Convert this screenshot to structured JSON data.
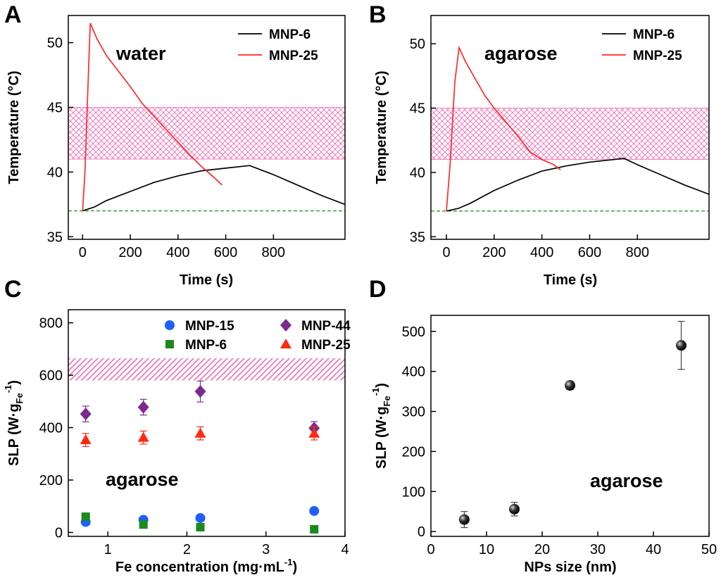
{
  "chart_data": [
    {
      "type": "line",
      "panel": "A",
      "xlabel": "Time (s)",
      "ylabel": "Temperature (°C)",
      "annotation": "water",
      "xlim": [
        -60,
        1100
      ],
      "ylim": [
        34.8,
        52.1
      ],
      "xticks": [
        0,
        200,
        400,
        600,
        800
      ],
      "yticks": [
        35,
        40,
        45,
        50
      ],
      "band": [
        41,
        45
      ],
      "band_color": "#f06bb5",
      "hline": 37,
      "hline_color": "#2e9a2e",
      "legend": "upper right",
      "series": [
        {
          "name": "MNP-6",
          "color": "#000000",
          "x": [
            0,
            50,
            100,
            200,
            300,
            400,
            500,
            600,
            700,
            800,
            900,
            1000,
            1100
          ],
          "values": [
            37,
            37.3,
            37.8,
            38.5,
            39.2,
            39.7,
            40.1,
            40.3,
            40.5,
            39.8,
            39.0,
            38.2,
            37.5
          ]
        },
        {
          "name": "MNP-25",
          "color": "#ff2a2a",
          "x": [
            0,
            10,
            25,
            32,
            60,
            100,
            150,
            200,
            250,
            300,
            350,
            400,
            450,
            500,
            550,
            584
          ],
          "values": [
            37,
            40,
            48,
            51.5,
            50.3,
            49,
            47.8,
            46.6,
            45.3,
            44.3,
            43.3,
            42.3,
            41.3,
            40.4,
            39.6,
            39.0
          ]
        }
      ]
    },
    {
      "type": "line",
      "panel": "B",
      "xlabel": "Time (s)",
      "ylabel": "Temperature (°C)",
      "annotation": "agarose",
      "xlim": [
        -65,
        1100
      ],
      "ylim": [
        34.8,
        52.2
      ],
      "xticks": [
        0,
        200,
        400,
        600,
        800
      ],
      "yticks": [
        35,
        40,
        45,
        50
      ],
      "band": [
        41,
        45
      ],
      "band_color": "#f06bb5",
      "hline": 37,
      "hline_color": "#2e9a2e",
      "legend": "upper right",
      "series": [
        {
          "name": "MNP-6",
          "color": "#000000",
          "x": [
            0,
            50,
            100,
            200,
            300,
            400,
            500,
            600,
            700,
            743,
            800,
            900,
            1000,
            1100
          ],
          "values": [
            37,
            37.2,
            37.6,
            38.6,
            39.4,
            40.1,
            40.5,
            40.8,
            41.0,
            41.1,
            40.6,
            39.8,
            39.0,
            38.3
          ]
        },
        {
          "name": "MNP-25",
          "color": "#ff2a2a",
          "x": [
            0,
            15,
            35,
            53,
            80,
            120,
            160,
            200,
            250,
            300,
            350,
            400,
            450,
            478
          ],
          "values": [
            37,
            40.5,
            47,
            49.7,
            48.6,
            47.3,
            46,
            45,
            43.9,
            42.8,
            41.6,
            41.0,
            40.6,
            40.2
          ]
        }
      ]
    },
    {
      "type": "scatter",
      "panel": "C",
      "xlabel": {
        "text": "Fe concentration (mg·mL",
        "sup": "-1",
        "close": ")"
      },
      "ylabel": {
        "text": "SLP (W·g",
        "sub": "Fe",
        "sup": "-1",
        "close": ")"
      },
      "annotation": "agarose",
      "xlim": [
        0.5,
        4
      ],
      "ylim": [
        -15,
        850
      ],
      "xticks": [
        1,
        2,
        3,
        4
      ],
      "yticks": [
        0,
        200,
        400,
        600,
        800
      ],
      "band": [
        580,
        665
      ],
      "band_color": "#f06bb5",
      "legend": "upper right",
      "x": [
        0.72,
        1.45,
        2.17,
        3.61
      ],
      "series": [
        {
          "name": "MNP-15",
          "color": "#1f5fff",
          "marker": "circle",
          "values": [
            40,
            48,
            55,
            82
          ]
        },
        {
          "name": "MNP-6",
          "color": "#1a8a1a",
          "marker": "square",
          "values": [
            60,
            30,
            20,
            12
          ]
        },
        {
          "name": "MNP-44",
          "color": "#7b2a8c",
          "marker": "diamond",
          "values": [
            452,
            478,
            538,
            398
          ],
          "errors": [
            30,
            30,
            40,
            25
          ]
        },
        {
          "name": "MNP-25",
          "color": "#ff2a10",
          "marker": "triangle",
          "values": [
            353,
            362,
            378,
            378
          ],
          "errors": [
            25,
            25,
            25,
            25
          ]
        }
      ]
    },
    {
      "type": "scatter",
      "panel": "D",
      "xlabel": "NPs size (nm)",
      "ylabel": {
        "text": "SLP (W·g",
        "sub": "Fe",
        "sup": "-1",
        "close": ")"
      },
      "annotation": "agarose",
      "xlim": [
        0,
        50
      ],
      "ylim": [
        -12,
        540
      ],
      "xticks": [
        0,
        10,
        20,
        30,
        40,
        50
      ],
      "yticks": [
        0,
        100,
        200,
        300,
        400,
        500
      ],
      "x": [
        6,
        15,
        25,
        45
      ],
      "series": [
        {
          "color": "#000000",
          "marker": "sphere",
          "values": [
            30,
            56,
            365,
            465
          ],
          "errors": [
            20,
            17,
            10,
            60
          ]
        }
      ]
    }
  ]
}
